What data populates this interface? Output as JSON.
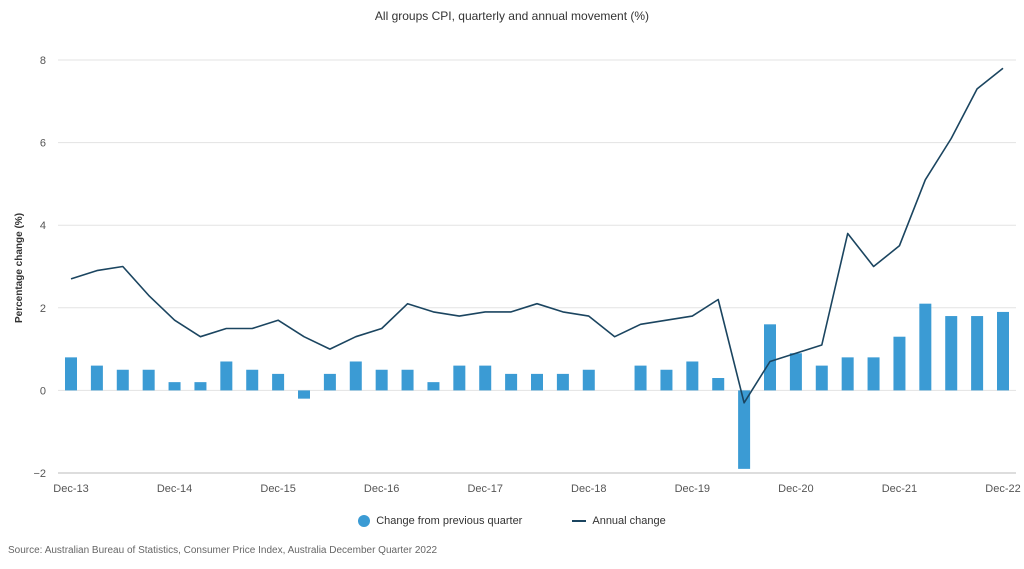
{
  "chart_data": {
    "type": "bar",
    "title": "All groups CPI, quarterly and annual movement (%)",
    "ylabel": "Percentage change (%)",
    "xlabel": "",
    "ylim": [
      -2,
      8
    ],
    "yticks": [
      -2,
      0,
      2,
      4,
      6,
      8
    ],
    "ytick_labels": [
      "−2",
      "0",
      "2",
      "4",
      "6",
      "8"
    ],
    "grid": true,
    "legend_position": "bottom",
    "x_tick_labels": [
      "Dec-13",
      "Dec-14",
      "Dec-15",
      "Dec-16",
      "Dec-17",
      "Dec-18",
      "Dec-19",
      "Dec-20",
      "Dec-21",
      "Dec-22"
    ],
    "categories": [
      "Dec-13",
      "Mar-14",
      "Jun-14",
      "Sep-14",
      "Dec-14",
      "Mar-15",
      "Jun-15",
      "Sep-15",
      "Dec-15",
      "Mar-16",
      "Jun-16",
      "Sep-16",
      "Dec-16",
      "Mar-17",
      "Jun-17",
      "Sep-17",
      "Dec-17",
      "Mar-18",
      "Jun-18",
      "Sep-18",
      "Dec-18",
      "Mar-19",
      "Jun-19",
      "Sep-19",
      "Dec-19",
      "Mar-20",
      "Jun-20",
      "Sep-20",
      "Dec-20",
      "Mar-21",
      "Jun-21",
      "Sep-21",
      "Dec-21",
      "Mar-22",
      "Jun-22",
      "Sep-22",
      "Dec-22"
    ],
    "series": [
      {
        "name": "Change from previous quarter",
        "type": "bar",
        "color": "#3b9bd4",
        "values": [
          0.8,
          0.6,
          0.5,
          0.5,
          0.2,
          0.2,
          0.7,
          0.5,
          0.4,
          -0.2,
          0.4,
          0.7,
          0.5,
          0.5,
          0.2,
          0.6,
          0.6,
          0.4,
          0.4,
          0.4,
          0.5,
          0.0,
          0.6,
          0.5,
          0.7,
          0.3,
          -1.9,
          1.6,
          0.9,
          0.6,
          0.8,
          0.8,
          1.3,
          2.1,
          1.8,
          1.8,
          1.9
        ]
      },
      {
        "name": "Annual change",
        "type": "line",
        "color": "#1b4560",
        "values": [
          2.7,
          2.9,
          3.0,
          2.3,
          1.7,
          1.3,
          1.5,
          1.5,
          1.7,
          1.3,
          1.0,
          1.3,
          1.5,
          2.1,
          1.9,
          1.8,
          1.9,
          1.9,
          2.1,
          1.9,
          1.8,
          1.3,
          1.6,
          1.7,
          1.8,
          2.2,
          -0.3,
          0.7,
          0.9,
          1.1,
          3.8,
          3.0,
          3.5,
          5.1,
          6.1,
          7.3,
          7.8
        ]
      }
    ]
  },
  "source": "Source: Australian Bureau of Statistics, Consumer Price Index, Australia December Quarter 2022"
}
